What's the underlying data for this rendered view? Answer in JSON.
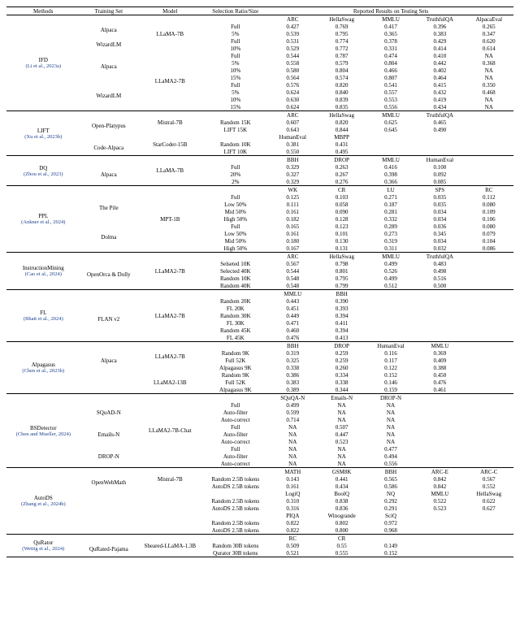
{
  "headers": {
    "methods": "Methods",
    "training": "Training Set",
    "model": "Model",
    "selection": "Selection Ratio/Size",
    "reported": "Reported Results on Testing Sets"
  },
  "groups": [
    {
      "method": "IFD",
      "ref": "(Li et al., 2023a)",
      "blocks": [
        {
          "model": "LLaMA-7B",
          "subheads": [
            "ARC",
            "HellaSwag",
            "MMLU",
            "TruthfulQA",
            "AlpacaEval"
          ],
          "sets": [
            {
              "training": "Alpaca",
              "rows": [
                [
                  "Full",
                  "0.427",
                  "0.769",
                  "0.417",
                  "0.396",
                  "0.265"
                ],
                [
                  "5%",
                  "0.539",
                  "0.795",
                  "0.365",
                  "0.383",
                  "0.347"
                ]
              ]
            },
            {
              "training": "WizardLM",
              "rows": [
                [
                  "Full",
                  "0.531",
                  "0.774",
                  "0.378",
                  "0.429",
                  "0.620"
                ],
                [
                  "10%",
                  "0.529",
                  "0.772",
                  "0.331",
                  "0.414",
                  "0.614"
                ]
              ]
            }
          ]
        },
        {
          "model": "LLaMA2-7B",
          "subheads": null,
          "sets": [
            {
              "training": "Alpaca",
              "rows": [
                [
                  "Full",
                  "0.544",
                  "0.787",
                  "0.474",
                  "0.410",
                  "NA"
                ],
                [
                  "5%",
                  "0.558",
                  "0.579",
                  "0.804",
                  "0.442",
                  "0.368"
                ],
                [
                  "10%",
                  "0.580",
                  "0.804",
                  "0.466",
                  "0.402",
                  "NA"
                ],
                [
                  "15%",
                  "0.564",
                  "0.574",
                  "0.807",
                  "0.464",
                  "NA"
                ]
              ]
            },
            {
              "training": "WizardLM",
              "rows": [
                [
                  "Full",
                  "0.576",
                  "0.820",
                  "0.541",
                  "0.415",
                  "0.350"
                ],
                [
                  "5%",
                  "0.624",
                  "0.840",
                  "0.557",
                  "0.432",
                  "0.468"
                ],
                [
                  "10%",
                  "0.630",
                  "0.839",
                  "0.553",
                  "0.419",
                  "NA"
                ],
                [
                  "15%",
                  "0.624",
                  "0.835",
                  "0.556",
                  "0.434",
                  "NA"
                ]
              ]
            }
          ]
        }
      ]
    },
    {
      "method": "LIFT",
      "ref": "(Xu et al., 2023b)",
      "blocks": [
        {
          "model": "Mistral-7B",
          "subheads": [
            "ARC",
            "HellaSwag",
            "MMLU",
            "TruthfulQA",
            ""
          ],
          "sets": [
            {
              "training": "Open-Platypus",
              "rows": [
                [
                  "Random 15K",
                  "0.607",
                  "0.820",
                  "0.625",
                  "0.465",
                  ""
                ],
                [
                  "LIFT 15K",
                  "0.643",
                  "0.844",
                  "0.645",
                  "0.490",
                  ""
                ]
              ]
            }
          ]
        },
        {
          "model": "StarCoder-15B",
          "subheads": [
            "HumanEval",
            "MBPP",
            "",
            "",
            ""
          ],
          "sets": [
            {
              "training": "Code-Alpaca",
              "rows": [
                [
                  "Random 10K",
                  "0.381",
                  "0.431",
                  "",
                  "",
                  ""
                ],
                [
                  "LIFT 10K",
                  "0.550",
                  "0.495",
                  "",
                  "",
                  ""
                ]
              ]
            }
          ]
        }
      ]
    },
    {
      "method": "DQ",
      "ref": "(Zhou et al., 2023)",
      "blocks": [
        {
          "model": "LLaMA-7B",
          "subheads": [
            "BBH",
            "DROP",
            "MMLU",
            "HumanEval",
            ""
          ],
          "sets": [
            {
              "training": "Alpaca",
              "rows": [
                [
                  "Full",
                  "0.329",
                  "0.263",
                  "0.416",
                  "0.100",
                  ""
                ],
                [
                  "20%",
                  "0.327",
                  "0.267",
                  "0.398",
                  "0.092",
                  ""
                ],
                [
                  "2%",
                  "0.329",
                  "0.276",
                  "0.366",
                  "0.085",
                  ""
                ]
              ]
            }
          ]
        }
      ]
    },
    {
      "method": "PPL",
      "ref": "(Ankner et al., 2024)",
      "blocks": [
        {
          "model": "MPT-1B",
          "subheads": [
            "WK",
            "CR",
            "LU",
            "SPS",
            "RC"
          ],
          "sets": [
            {
              "training": "The Pile",
              "rows": [
                [
                  "Full",
                  "0.125",
                  "0.103",
                  "0.271",
                  "0.035",
                  "0.112"
                ],
                [
                  "Low 50%",
                  "0.111",
                  "0.058",
                  "0.187",
                  "0.035",
                  "0.080"
                ],
                [
                  "Mid 50%",
                  "0.161",
                  "0.090",
                  "0.281",
                  "0.034",
                  "0.109"
                ],
                [
                  "High 50%",
                  "0.182",
                  "0.128",
                  "0.332",
                  "0.034",
                  "0.106"
                ]
              ]
            },
            {
              "training": "Dolma",
              "rows": [
                [
                  "Full",
                  "0.165",
                  "0.123",
                  "0.289",
                  "0.036",
                  "0.080"
                ],
                [
                  "Low 50%",
                  "0.161",
                  "0.101",
                  "0.273",
                  "0.345",
                  "0.079"
                ],
                [
                  "Mid 50%",
                  "0.180",
                  "0.130",
                  "0.319",
                  "0.034",
                  "0.104"
                ],
                [
                  "High 50%",
                  "0.167",
                  "0.131",
                  "0.311",
                  "0.032",
                  "0.086"
                ]
              ]
            }
          ]
        }
      ]
    },
    {
      "method": "InstructionMining",
      "ref": "(Cao et al., 2024)",
      "blocks": [
        {
          "model": "LLaMA2-7B",
          "subheads": [
            "ARC",
            "HellaSwag",
            "MMLU",
            "TruthfulQA",
            ""
          ],
          "sets": [
            {
              "training": "OpenOrca & Dolly",
              "rows": [
                [
                  "Selseted 10K",
                  "0.567",
                  "0.798",
                  "0.499",
                  "0.483",
                  ""
                ],
                [
                  "Selected 40K",
                  "0.544",
                  "0.801",
                  "0.526",
                  "0.498",
                  ""
                ],
                [
                  "Random 10K",
                  "0.548",
                  "0.795",
                  "0.499",
                  "0.516",
                  ""
                ],
                [
                  "Random 40K",
                  "0.548",
                  "0.799",
                  "0.512",
                  "0.500",
                  ""
                ]
              ]
            }
          ]
        }
      ]
    },
    {
      "method": "FL",
      "ref": "(Bhatt et al., 2024)",
      "blocks": [
        {
          "model": "LLaMA2-7B",
          "subheads": [
            "MMLU",
            "BBH",
            "",
            "",
            ""
          ],
          "sets": [
            {
              "training": "FLAN v2",
              "rows": [
                [
                  "Random 20K",
                  "0.443",
                  "0.390",
                  "",
                  "",
                  ""
                ],
                [
                  "FL 20K",
                  "0.451",
                  "0.393",
                  "",
                  "",
                  ""
                ],
                [
                  "Random 30K",
                  "0.449",
                  "0.394",
                  "",
                  "",
                  ""
                ],
                [
                  "FL 30K",
                  "0.471",
                  "0.411",
                  "",
                  "",
                  ""
                ],
                [
                  "Random 45K",
                  "0.460",
                  "0.394",
                  "",
                  "",
                  ""
                ],
                [
                  "FL 45K",
                  "0.476",
                  "0.413",
                  "",
                  "",
                  ""
                ]
              ]
            }
          ]
        }
      ]
    },
    {
      "method": "Alpagasus",
      "ref": "(Chen et al., 2023b)",
      "blocks": [
        {
          "model": "LLaMA2-7B",
          "subheads": [
            "BBH",
            "DROP",
            "HumanEval",
            "MMLU",
            ""
          ],
          "sets": [
            {
              "training": "Alpaca",
              "rows": [
                [
                  "Random 9K",
                  "0.319",
                  "0.259",
                  "0.116",
                  "0.369",
                  ""
                ],
                [
                  "Full 52K",
                  "0.325",
                  "0.259",
                  "0.117",
                  "0.409",
                  ""
                ],
                [
                  "Alpagasus 9K",
                  "0.338",
                  "0.260",
                  "0.122",
                  "0.388",
                  ""
                ]
              ]
            }
          ]
        },
        {
          "model": "LLaMA2-13B",
          "subheads": null,
          "sets": [
            {
              "training": "",
              "rows": [
                [
                  "Random 9K",
                  "0.386",
                  "0.334",
                  "0.152",
                  "0.450",
                  ""
                ],
                [
                  "Full 52K",
                  "0.383",
                  "0.338",
                  "0.146",
                  "0.476",
                  ""
                ],
                [
                  "Alpagasus 9K",
                  "0.389",
                  "0.344",
                  "0.159",
                  "0.461",
                  ""
                ]
              ]
            }
          ]
        }
      ]
    },
    {
      "method": "BSDetector",
      "ref": "(Chen and Mueller, 2024)",
      "blocks": [
        {
          "model": "LLaMA2-7B-Chat",
          "subheads": [
            "SQuQA-N",
            "Emails-N",
            "DROP-N",
            "",
            ""
          ],
          "sets": [
            {
              "training": "SQuAD-N",
              "rows": [
                [
                  "Full",
                  "0.499",
                  "NA",
                  "NA",
                  "",
                  ""
                ],
                [
                  "Auto-filter",
                  "0.599",
                  "NA",
                  "NA",
                  "",
                  ""
                ],
                [
                  "Auto-correct",
                  "0.714",
                  "NA",
                  "NA",
                  "",
                  ""
                ]
              ]
            },
            {
              "training": "Emails-N",
              "rows": [
                [
                  "Full",
                  "NA",
                  "0.507",
                  "NA",
                  "",
                  ""
                ],
                [
                  "Auto-filter",
                  "NA",
                  "0.447",
                  "NA",
                  "",
                  ""
                ],
                [
                  "Auto-correct",
                  "NA",
                  "0.523",
                  "NA",
                  "",
                  ""
                ]
              ]
            },
            {
              "training": "DROP-N",
              "rows": [
                [
                  "Full",
                  "NA",
                  "NA",
                  "0.477",
                  "",
                  ""
                ],
                [
                  "Auto-filter",
                  "NA",
                  "NA",
                  "0.494",
                  "",
                  ""
                ],
                [
                  "Auto-correct",
                  "NA",
                  "NA",
                  "0.556",
                  "",
                  ""
                ]
              ]
            }
          ]
        }
      ]
    },
    {
      "method": "AutoDS",
      "ref": "(Zhang et al., 2024b)",
      "blocks": [
        {
          "model": "Mistral-7B",
          "subheads": [
            "MATH",
            "GSM8K",
            "BBH",
            "ARC-E",
            "ARC-C"
          ],
          "sets": [
            {
              "training": "OpenWebMath",
              "rows": [
                [
                  "Random 2.5B tokens",
                  "0.143",
                  "0.441",
                  "0.565",
                  "0.842",
                  "0.567"
                ],
                [
                  "AutoDS 2.5B tokens",
                  "0.161",
                  "0.434",
                  "0.586",
                  "0.842",
                  "0.552"
                ]
              ]
            }
          ]
        },
        {
          "model": "",
          "subheads": [
            "LogiQ",
            "BoolQ",
            "NQ",
            "MMLU",
            "HellaSwag"
          ],
          "sets": [
            {
              "training": "",
              "rows": [
                [
                  "Random 2.5B tokens",
                  "0.310",
                  "0.838",
                  "0.292",
                  "0.522",
                  "0.622"
                ],
                [
                  "AutoDS 2.5B tokens",
                  "0.316",
                  "0.836",
                  "0.291",
                  "0.523",
                  "0.627"
                ]
              ]
            }
          ]
        },
        {
          "model": "",
          "subheads": [
            "PIQA",
            "Winogrande",
            "SciQ",
            "",
            ""
          ],
          "sets": [
            {
              "training": "",
              "rows": [
                [
                  "Random 2.5B tokens",
                  "0.822",
                  "0.802",
                  "0.972",
                  "",
                  ""
                ],
                [
                  "AutoDS 2.5B tokens",
                  "0.822",
                  "0.800",
                  "0.968",
                  "",
                  ""
                ]
              ]
            }
          ]
        }
      ]
    },
    {
      "method": "QuRator",
      "ref": "(Wettig et al., 2024)",
      "blocks": [
        {
          "model": "Sheared-LLaMA-1.3B",
          "subheads": [
            "RC",
            "CR",
            "",
            "",
            ""
          ],
          "sets": [
            {
              "training": "QuRated-Pajama",
              "rows": [
                [
                  "Random 30B tokens",
                  "0.509",
                  "0.55",
                  "0.149",
                  "",
                  ""
                ],
                [
                  "Qurator 30B tokens",
                  "0.521",
                  "0.555",
                  "0.152",
                  "",
                  ""
                ]
              ]
            }
          ]
        }
      ]
    }
  ]
}
